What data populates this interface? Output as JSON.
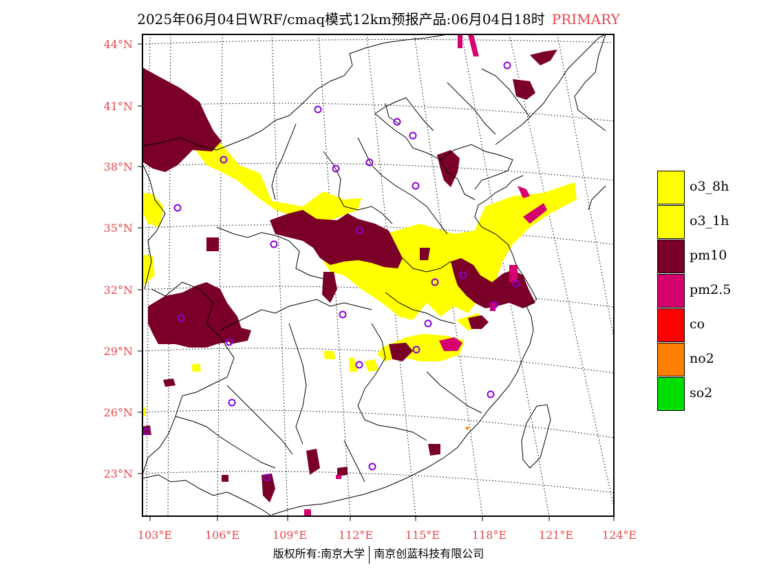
{
  "title": {
    "main": "2025年06月04日WRF/cmaq模式12km预报产品:06月04日18时",
    "primary": "PRIMARY"
  },
  "map": {
    "lat_ticks": [
      "44°N",
      "41°N",
      "38°N",
      "35°N",
      "32°N",
      "29°N",
      "26°N",
      "23°N"
    ],
    "lon_ticks": [
      "103°E",
      "106°E",
      "109°E",
      "112°E",
      "115°E",
      "118°E",
      "121°E",
      "124°E"
    ]
  },
  "legend": [
    {
      "label": "o3_8h",
      "color": "#ffff00"
    },
    {
      "label": "o3_1h",
      "color": "#ffff00"
    },
    {
      "label": "pm10",
      "color": "#7a0028"
    },
    {
      "label": "pm2.5",
      "color": "#d6006e"
    },
    {
      "label": "co",
      "color": "#ff0000"
    },
    {
      "label": "no2",
      "color": "#ff7f00"
    },
    {
      "label": "so2",
      "color": "#00dd00"
    }
  ],
  "colors": {
    "o3": "#ffff00",
    "pm10": "#7a0028",
    "pm25": "#d6006e",
    "station": "#8a00d4",
    "labels": "#e8454a"
  },
  "copyright": {
    "left": "版权所有:南京大学",
    "right": "南京创蓝科技有限公司"
  }
}
